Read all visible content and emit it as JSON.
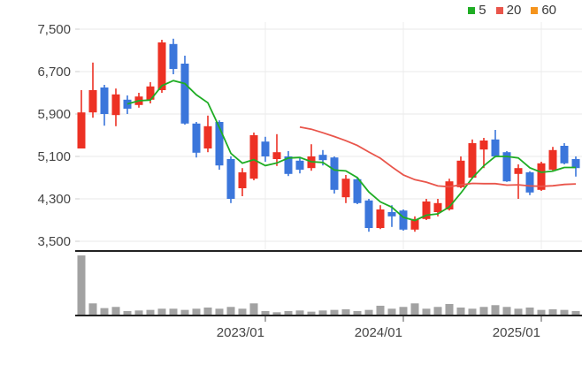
{
  "chart_data": {
    "type": "candlestick",
    "title": "",
    "legend": [
      {
        "label": "5",
        "color": "#1fad24"
      },
      {
        "label": "20",
        "color": "#e9554b"
      },
      {
        "label": "60",
        "color": "#f5941d"
      }
    ],
    "y_axis": {
      "tick_labels": [
        "7,500",
        "6,700",
        "5,900",
        "5,100",
        "4,300",
        "3,500"
      ],
      "ticks": [
        7500,
        6700,
        5900,
        5100,
        4300,
        3500
      ]
    },
    "x_axis": {
      "labels": [
        {
          "text": "2023/01",
          "index": 16
        },
        {
          "text": "2024/01",
          "index": 28
        },
        {
          "text": "2025/01",
          "index": 40
        }
      ]
    },
    "columns": [
      "open",
      "high",
      "low",
      "close",
      "volume"
    ],
    "candles": [
      [
        5250,
        6350,
        5250,
        5930,
        100
      ],
      [
        5930,
        6870,
        5830,
        6350,
        19
      ],
      [
        6400,
        6450,
        5680,
        5900,
        11
      ],
      [
        5880,
        6380,
        5670,
        6270,
        13
      ],
      [
        6170,
        6250,
        5900,
        6000,
        6
      ],
      [
        6070,
        6300,
        6020,
        6230,
        7
      ],
      [
        6170,
        6500,
        6100,
        6420,
        8
      ],
      [
        6350,
        7300,
        6300,
        7250,
        10
      ],
      [
        7220,
        7320,
        6650,
        6750,
        10
      ],
      [
        6850,
        7000,
        5700,
        5720,
        8
      ],
      [
        5720,
        5750,
        5080,
        5170,
        10
      ],
      [
        5250,
        5870,
        5180,
        5670,
        12
      ],
      [
        5750,
        5780,
        4850,
        4930,
        10
      ],
      [
        5050,
        5100,
        4220,
        4300,
        13
      ],
      [
        4500,
        4880,
        4350,
        4800,
        10
      ],
      [
        4680,
        5550,
        4650,
        5500,
        19
      ],
      [
        5380,
        5470,
        5000,
        5100,
        6
      ],
      [
        5050,
        5520,
        4920,
        5180,
        4
      ],
      [
        5100,
        5200,
        4730,
        4770,
        6
      ],
      [
        5020,
        5080,
        4780,
        4850,
        7
      ],
      [
        4880,
        5330,
        4830,
        5100,
        5
      ],
      [
        5130,
        5220,
        4930,
        5030,
        7
      ],
      [
        5080,
        5100,
        4400,
        4470,
        8
      ],
      [
        4330,
        4750,
        4220,
        4680,
        9
      ],
      [
        4670,
        4700,
        4200,
        4220,
        6
      ],
      [
        4270,
        4300,
        3680,
        3750,
        8
      ],
      [
        3750,
        4180,
        3730,
        4100,
        15
      ],
      [
        4050,
        4180,
        3770,
        3970,
        10
      ],
      [
        4080,
        4100,
        3700,
        3720,
        13
      ],
      [
        3720,
        3970,
        3680,
        3920,
        19
      ],
      [
        3920,
        4300,
        3900,
        4250,
        10
      ],
      [
        4050,
        4300,
        3970,
        4220,
        13
      ],
      [
        4100,
        4680,
        4080,
        4630,
        18
      ],
      [
        4520,
        5100,
        4500,
        5020,
        12
      ],
      [
        4700,
        5420,
        4680,
        5350,
        10
      ],
      [
        5230,
        5450,
        4880,
        5400,
        13
      ],
      [
        5420,
        5600,
        5080,
        5100,
        16
      ],
      [
        5180,
        5200,
        4620,
        4630,
        13
      ],
      [
        4770,
        4950,
        4300,
        4880,
        10
      ],
      [
        4800,
        4820,
        4370,
        4420,
        12
      ],
      [
        4470,
        5000,
        4450,
        4970,
        8
      ],
      [
        4850,
        5280,
        4830,
        5220,
        9
      ],
      [
        5300,
        5350,
        4950,
        4970,
        8
      ],
      [
        5050,
        5100,
        4720,
        4880,
        6
      ]
    ],
    "moving_averages": {
      "windows": [
        5,
        20,
        60
      ]
    },
    "volume_max": 100,
    "colors": {
      "up_candle": "#ed3124",
      "down_candle": "#3b76db",
      "ma5_line": "#1fad24",
      "ma20_line": "#e9554b",
      "ma60_line": "#f5941d",
      "volume_bar": "#a2a2a2",
      "gridline": "#e9e9e9",
      "axis_line": "#222222",
      "tick_text": "#444444"
    }
  }
}
